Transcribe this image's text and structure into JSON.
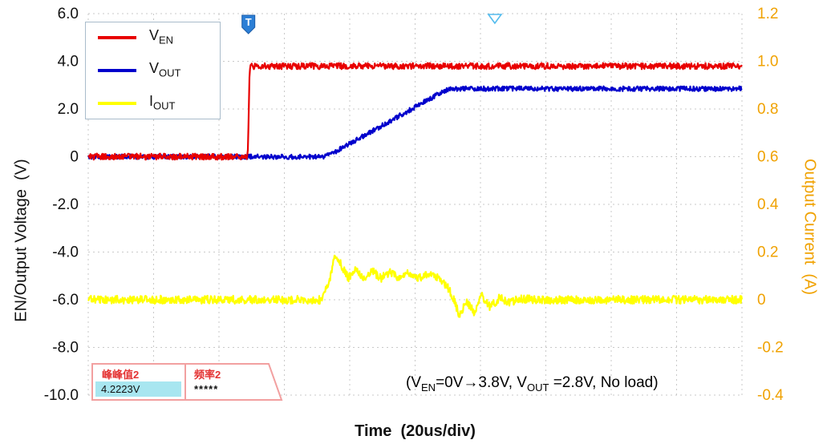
{
  "axes": {
    "left": {
      "title": "EN/Output Voltage  (V)",
      "ticks": [
        "6.0",
        "4.0",
        "2.0",
        "0",
        "-2.0",
        "-4.0",
        "-6.0",
        "-8.0",
        "-10.0"
      ]
    },
    "right": {
      "title": "Output Current  (A)",
      "color": "#F0A202",
      "ticks": [
        "1.2",
        "1.0",
        "0.8",
        "0.6",
        "0.4",
        "0.2",
        "0",
        "-0.2",
        "-0.4"
      ]
    },
    "x": {
      "title": "Time  (20us/div)"
    }
  },
  "legend": {
    "items": [
      {
        "main": "V",
        "sub": "EN",
        "color": "#E80000"
      },
      {
        "main": "V",
        "sub": "OUT",
        "color": "#0000CC"
      },
      {
        "main": "I",
        "sub": "OUT",
        "color": "#FFFF00"
      }
    ]
  },
  "measurement": {
    "col1_header": "峰峰值2",
    "col1_value": "4.2223V",
    "col2_header": "频率2",
    "col2_value": "*****"
  },
  "annotation": {
    "p1": "(V",
    "s1": "EN",
    "p2": "=0V→3.8V, V",
    "s2": "OUT",
    "p3": " =2.8V, No load)"
  },
  "markers": {
    "trigger_label": "T"
  },
  "chart_data": {
    "type": "line",
    "title": "EN startup waveform (oscilloscope capture)",
    "x_axis": {
      "label": "Time",
      "scale": "20us/div",
      "divisions": 10
    },
    "left_axis": {
      "label": "EN/Output Voltage (V)",
      "range": [
        6,
        -10
      ],
      "tick_step": 2
    },
    "right_axis": {
      "label": "Output Current (A)",
      "range": [
        1.2,
        -0.4
      ],
      "tick_step": 0.2
    },
    "grid": true,
    "legend_position": "top-left",
    "series": [
      {
        "name": "V_EN",
        "axis": "left",
        "unit": "V",
        "color": "#E80000",
        "noise": 0.13,
        "z": 2,
        "points": [
          [
            0,
            0
          ],
          [
            2.44,
            0
          ],
          [
            2.47,
            3.78
          ],
          [
            2.6,
            3.8
          ],
          [
            10,
            3.8
          ]
        ]
      },
      {
        "name": "V_OUT",
        "axis": "left",
        "unit": "V",
        "color": "#0000CC",
        "noise": 0.1,
        "z": 1,
        "points": [
          [
            0,
            0
          ],
          [
            3.58,
            0
          ],
          [
            3.68,
            0.06
          ],
          [
            5.42,
            2.72
          ],
          [
            5.55,
            2.85
          ],
          [
            10,
            2.85
          ]
        ]
      },
      {
        "name": "I_OUT",
        "axis": "right",
        "unit": "A",
        "color": "#FFFF00",
        "noise": 0.017,
        "z": 3,
        "points": [
          [
            0,
            0
          ],
          [
            3.55,
            0
          ],
          [
            3.66,
            0.05
          ],
          [
            3.78,
            0.19
          ],
          [
            3.88,
            0.14
          ],
          [
            3.98,
            0.09
          ],
          [
            4.1,
            0.13
          ],
          [
            4.22,
            0.09
          ],
          [
            4.34,
            0.12
          ],
          [
            4.48,
            0.09
          ],
          [
            4.6,
            0.115
          ],
          [
            4.75,
            0.095
          ],
          [
            4.9,
            0.11
          ],
          [
            5.05,
            0.09
          ],
          [
            5.2,
            0.105
          ],
          [
            5.35,
            0.095
          ],
          [
            5.48,
            0.06
          ],
          [
            5.58,
            0.01
          ],
          [
            5.68,
            -0.065
          ],
          [
            5.78,
            -0.005
          ],
          [
            5.9,
            -0.05
          ],
          [
            6.02,
            0.015
          ],
          [
            6.15,
            -0.03
          ],
          [
            6.3,
            0.01
          ],
          [
            6.45,
            -0.015
          ],
          [
            6.6,
            0.005
          ],
          [
            6.8,
            0
          ],
          [
            10,
            0
          ]
        ]
      }
    ],
    "trigger_marker_div": 2.45,
    "top_marker_div": 6.22
  }
}
